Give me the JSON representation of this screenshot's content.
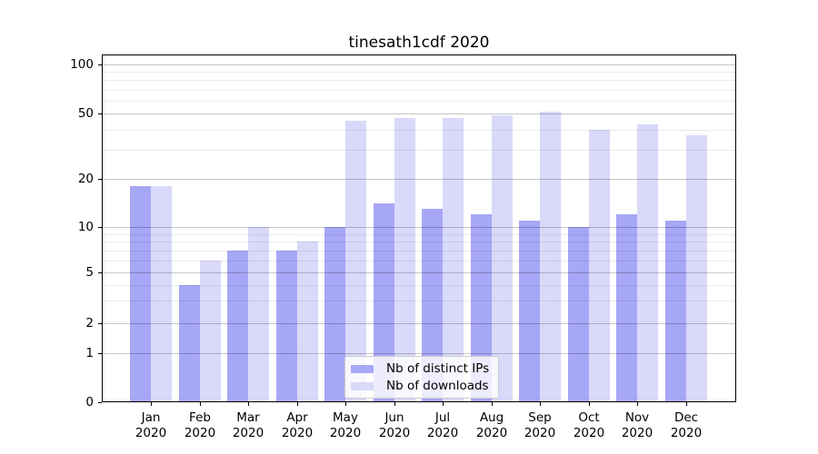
{
  "title": "tinesath1cdf 2020",
  "chart_data": {
    "type": "bar",
    "title": "tinesath1cdf 2020",
    "categories": [
      "Jan 2020",
      "Feb 2020",
      "Mar 2020",
      "Apr 2020",
      "May 2020",
      "Jun 2020",
      "Jul 2020",
      "Aug 2020",
      "Sep 2020",
      "Oct 2020",
      "Nov 2020",
      "Dec 2020"
    ],
    "series": [
      {
        "name": "Nb of distinct IPs",
        "color": "#a7a7f7",
        "values": [
          18,
          4,
          7,
          7,
          10,
          14,
          13,
          12,
          11,
          10,
          12,
          11
        ]
      },
      {
        "name": "Nb of downloads",
        "color": "#d9d9fa",
        "values": [
          18,
          6,
          10,
          8,
          45,
          47,
          47,
          49,
          51,
          40,
          43,
          37
        ]
      }
    ],
    "xlabel": "",
    "ylabel": "",
    "yscale": "symlog",
    "ylim": [
      0,
      115
    ],
    "y_ticks": [
      0,
      1,
      2,
      5,
      10,
      20,
      50,
      100
    ],
    "y_minor_ticks": [
      3,
      4,
      6,
      7,
      8,
      9,
      30,
      40,
      60,
      70,
      80,
      90
    ],
    "grid": true,
    "legend_position": "lower center"
  },
  "colors": {
    "background": "#ffffff",
    "axis": "#000000",
    "grid_major": "rgba(0,0,0,0.22)",
    "grid_minor": "rgba(0,0,0,0.08)"
  }
}
